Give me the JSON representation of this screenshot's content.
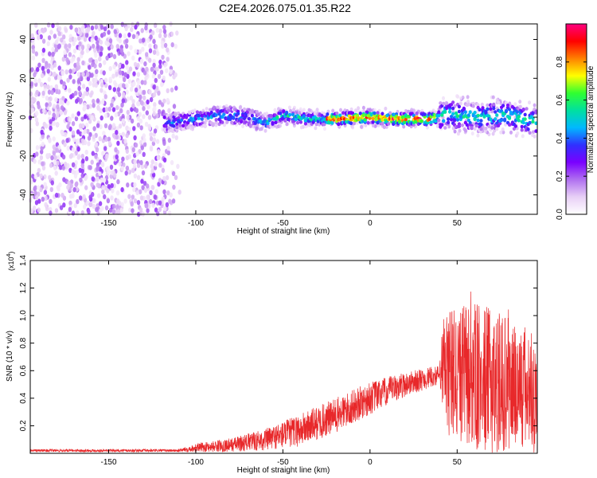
{
  "figure_title": "C2E4.2026.075.01.35.R22",
  "chart_data": [
    {
      "type": "heatmap",
      "title": "C2E4.2026.075.01.35.R22",
      "xlabel": "Height of straight line (km)",
      "ylabel": "Frequency (Hz)",
      "xlim": [
        -195,
        96
      ],
      "ylim": [
        -50,
        48
      ],
      "xticks": [
        -150,
        -100,
        -50,
        0,
        50
      ],
      "xtick_labels": [
        "-150",
        "-100",
        "-50",
        "0",
        "50"
      ],
      "yticks": [
        -40,
        -20,
        0,
        20,
        40
      ],
      "ytick_labels": [
        "-40",
        "-20",
        "0",
        "20",
        "40"
      ],
      "colorbar": {
        "label": "Normalized spectral amplitude",
        "range": [
          0,
          1
        ],
        "ticks": [
          0.0,
          0.2,
          0.4,
          0.6,
          0.8
        ],
        "tick_labels": [
          "0.0",
          "0.2",
          "0.4",
          "0.6",
          "0.8"
        ],
        "colormap": [
          "#ffffff",
          "#e8d0f6",
          "#b070f0",
          "#7a00ff",
          "#3030ff",
          "#00b8ff",
          "#00e0a0",
          "#30ff30",
          "#ffff00",
          "#ff8000",
          "#ff0000",
          "#ff0080"
        ]
      },
      "ridge": {
        "x_start": -118,
        "x_end": 96,
        "center_hz": [
          {
            "x": -115,
            "y": -3
          },
          {
            "x": -100,
            "y": -1
          },
          {
            "x": -85,
            "y": 1
          },
          {
            "x": -70,
            "y": 0
          },
          {
            "x": -60,
            "y": -3
          },
          {
            "x": -50,
            "y": 1
          },
          {
            "x": -35,
            "y": -1
          },
          {
            "x": -20,
            "y": -1
          },
          {
            "x": 0,
            "y": 0
          },
          {
            "x": 15,
            "y": -1
          },
          {
            "x": 35,
            "y": -1
          },
          {
            "x": 45,
            "y": 2
          },
          {
            "x": 60,
            "y": 0
          },
          {
            "x": 75,
            "y": 1
          },
          {
            "x": 95,
            "y": -2
          }
        ]
      },
      "noise_region": {
        "x_start": -195,
        "x_end": -108
      }
    },
    {
      "type": "line",
      "xlabel": "Height of straight line (km)",
      "ylabel": "SNR (10 * v/v)",
      "y_multiplier": "(x10",
      "y_multiplier_exp": "4",
      "xlim": [
        -195,
        96
      ],
      "ylim": [
        0,
        1.4
      ],
      "xticks": [
        -150,
        -100,
        -50,
        0,
        50
      ],
      "xtick_labels": [
        "-150",
        "-100",
        "-50",
        "0",
        "50"
      ],
      "yticks": [
        0.2,
        0.4,
        0.6,
        0.8,
        1.0,
        1.2,
        1.4
      ],
      "ytick_labels": [
        "0.2",
        "0.4",
        "0.6",
        "0.8",
        "1.0",
        "1.2",
        "1.4"
      ],
      "series": [
        {
          "name": "SNR",
          "color": "#e8282a",
          "envelope": [
            {
              "x": -195,
              "mean": 0.02,
              "spread": 0.01
            },
            {
              "x": -110,
              "mean": 0.02,
              "spread": 0.01
            },
            {
              "x": -100,
              "mean": 0.04,
              "spread": 0.03
            },
            {
              "x": -80,
              "mean": 0.06,
              "spread": 0.05
            },
            {
              "x": -60,
              "mean": 0.1,
              "spread": 0.08
            },
            {
              "x": -40,
              "mean": 0.17,
              "spread": 0.12
            },
            {
              "x": -20,
              "mean": 0.27,
              "spread": 0.13
            },
            {
              "x": 0,
              "mean": 0.4,
              "spread": 0.12
            },
            {
              "x": 20,
              "mean": 0.5,
              "spread": 0.09
            },
            {
              "x": 40,
              "mean": 0.57,
              "spread": 0.07
            },
            {
              "x": 42,
              "mean": 0.6,
              "spread": 0.45
            },
            {
              "x": 60,
              "mean": 0.55,
              "spread": 0.55
            },
            {
              "x": 80,
              "mean": 0.5,
              "spread": 0.5
            },
            {
              "x": 96,
              "mean": 0.45,
              "spread": 0.45
            }
          ]
        }
      ]
    }
  ]
}
